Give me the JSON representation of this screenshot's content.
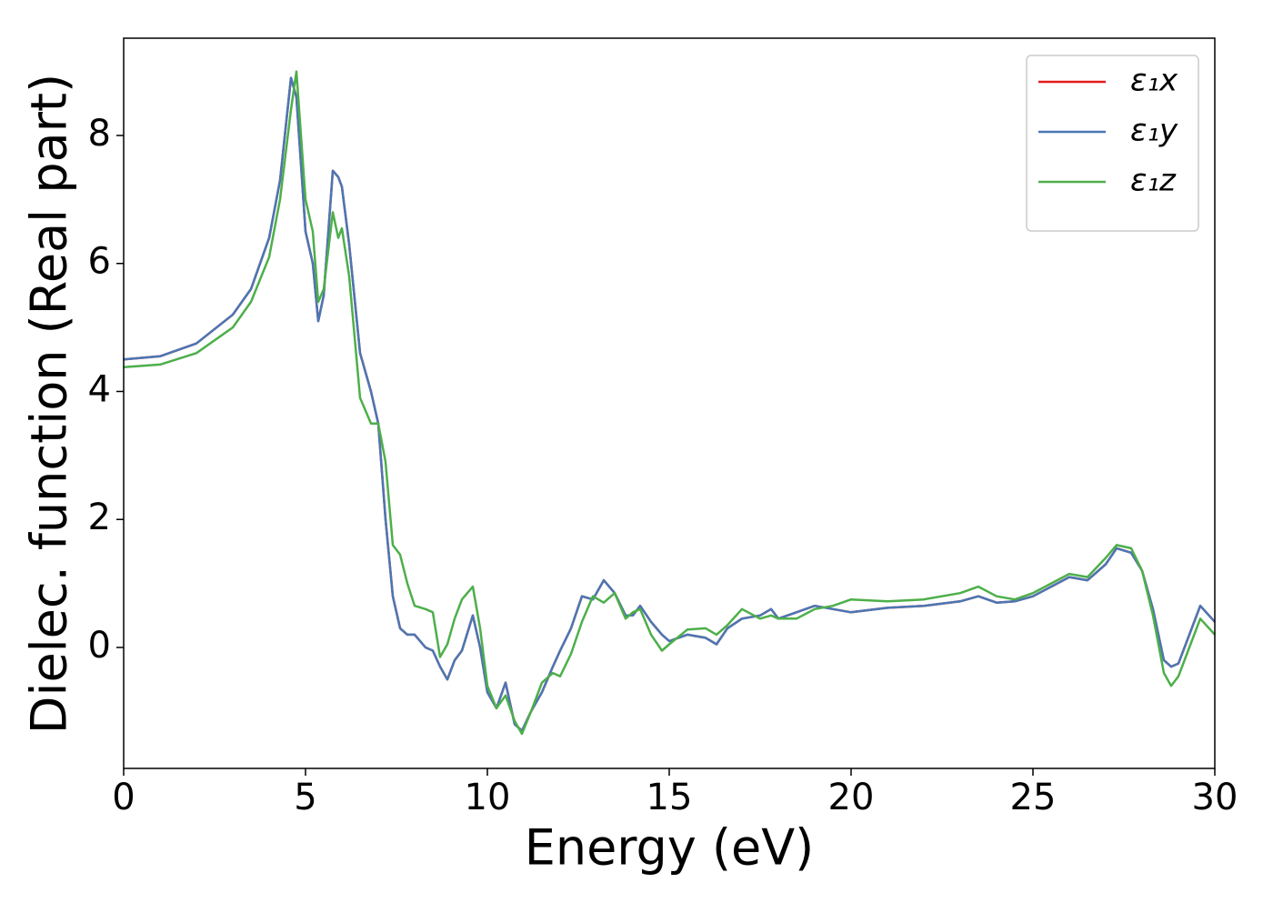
{
  "chart_data": {
    "type": "line",
    "xlabel": "Energy (eV)",
    "ylabel": "Dielec. function (Real part)",
    "x": [
      0,
      1,
      2,
      3,
      3.5,
      4,
      4.3,
      4.6,
      4.75,
      5,
      5.2,
      5.35,
      5.5,
      5.75,
      5.9,
      6,
      6.2,
      6.5,
      6.8,
      7,
      7.2,
      7.4,
      7.6,
      7.8,
      8,
      8.3,
      8.5,
      8.7,
      8.9,
      9.1,
      9.3,
      9.6,
      9.8,
      10,
      10.25,
      10.5,
      10.75,
      10.95,
      11.2,
      11.5,
      11.8,
      12,
      12.3,
      12.6,
      12.9,
      13.2,
      13.5,
      13.8,
      14,
      14.2,
      14.5,
      14.8,
      15,
      15.5,
      16,
      16.3,
      16.6,
      17,
      17.5,
      17.8,
      18,
      18.5,
      19,
      19.5,
      20,
      21,
      22,
      23,
      23.5,
      24,
      24.5,
      25,
      25.5,
      26,
      26.5,
      27,
      27.3,
      27.7,
      28,
      28.3,
      28.6,
      28.8,
      29,
      29.3,
      29.6,
      30
    ],
    "series": [
      {
        "name": "ε₁x",
        "color": "#e41a1c",
        "values": [
          4.5,
          4.55,
          4.75,
          5.2,
          5.6,
          6.4,
          7.3,
          8.9,
          8.6,
          6.5,
          6.0,
          5.1,
          5.5,
          7.45,
          7.35,
          7.2,
          6.3,
          4.6,
          4.0,
          3.5,
          2.0,
          0.8,
          0.3,
          0.2,
          0.2,
          0.0,
          -0.05,
          -0.3,
          -0.5,
          -0.2,
          -0.05,
          0.5,
          0.0,
          -0.7,
          -0.95,
          -0.55,
          -1.2,
          -1.3,
          -1.0,
          -0.7,
          -0.3,
          -0.05,
          0.3,
          0.8,
          0.75,
          1.05,
          0.85,
          0.5,
          0.5,
          0.65,
          0.4,
          0.2,
          0.1,
          0.2,
          0.15,
          0.05,
          0.3,
          0.45,
          0.5,
          0.6,
          0.45,
          0.55,
          0.65,
          0.6,
          0.55,
          0.62,
          0.65,
          0.72,
          0.8,
          0.7,
          0.72,
          0.8,
          0.95,
          1.1,
          1.05,
          1.3,
          1.55,
          1.48,
          1.2,
          0.6,
          -0.2,
          -0.3,
          -0.25,
          0.2,
          0.65,
          0.4
        ]
      },
      {
        "name": "ε₁y",
        "color": "#4a77b4",
        "values": [
          4.5,
          4.55,
          4.75,
          5.2,
          5.6,
          6.4,
          7.3,
          8.9,
          8.6,
          6.5,
          6.0,
          5.1,
          5.5,
          7.45,
          7.35,
          7.2,
          6.3,
          4.6,
          4.0,
          3.5,
          2.0,
          0.8,
          0.3,
          0.2,
          0.2,
          0.0,
          -0.05,
          -0.3,
          -0.5,
          -0.2,
          -0.05,
          0.5,
          0.0,
          -0.7,
          -0.95,
          -0.55,
          -1.2,
          -1.3,
          -1.0,
          -0.7,
          -0.3,
          -0.05,
          0.3,
          0.8,
          0.75,
          1.05,
          0.85,
          0.5,
          0.5,
          0.65,
          0.4,
          0.2,
          0.1,
          0.2,
          0.15,
          0.05,
          0.3,
          0.45,
          0.5,
          0.6,
          0.45,
          0.55,
          0.65,
          0.6,
          0.55,
          0.62,
          0.65,
          0.72,
          0.8,
          0.7,
          0.72,
          0.8,
          0.95,
          1.1,
          1.05,
          1.3,
          1.55,
          1.48,
          1.2,
          0.6,
          -0.2,
          -0.3,
          -0.25,
          0.2,
          0.65,
          0.4
        ]
      },
      {
        "name": "ε₁z",
        "color": "#4daf4a",
        "values": [
          4.38,
          4.42,
          4.6,
          5.0,
          5.4,
          6.1,
          7.0,
          8.4,
          9.0,
          7.0,
          6.5,
          5.4,
          5.6,
          6.8,
          6.4,
          6.55,
          5.8,
          3.9,
          3.5,
          3.5,
          2.9,
          1.6,
          1.45,
          1.0,
          0.65,
          0.6,
          0.55,
          -0.15,
          0.05,
          0.45,
          0.75,
          0.95,
          0.3,
          -0.6,
          -0.95,
          -0.75,
          -1.15,
          -1.35,
          -1.0,
          -0.55,
          -0.4,
          -0.45,
          -0.1,
          0.4,
          0.8,
          0.7,
          0.85,
          0.45,
          0.55,
          0.6,
          0.2,
          -0.05,
          0.05,
          0.28,
          0.3,
          0.2,
          0.35,
          0.6,
          0.45,
          0.5,
          0.45,
          0.45,
          0.6,
          0.65,
          0.75,
          0.72,
          0.75,
          0.85,
          0.95,
          0.8,
          0.75,
          0.85,
          1.0,
          1.15,
          1.1,
          1.4,
          1.6,
          1.55,
          1.2,
          0.5,
          -0.4,
          -0.6,
          -0.45,
          0.0,
          0.45,
          0.2
        ]
      }
    ],
    "xlim": [
      0,
      30
    ],
    "xticks": [
      0,
      5,
      10,
      15,
      20,
      25,
      30
    ],
    "ylim": [
      -1.89,
      9.52
    ],
    "yticks": [
      0,
      2,
      4,
      6,
      8
    ],
    "legend": "upper right"
  }
}
